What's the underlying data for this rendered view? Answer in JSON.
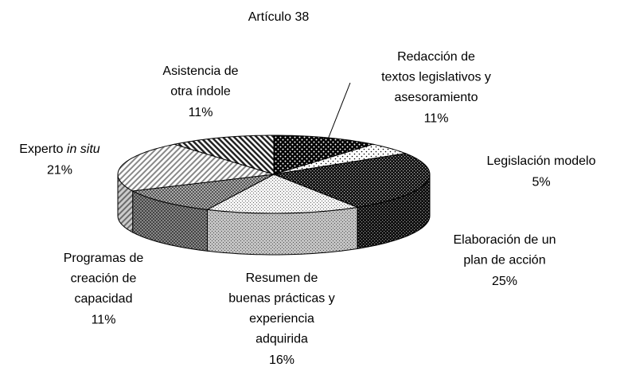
{
  "chart_data": {
    "type": "pie3d",
    "title": "Artículo 38",
    "categories": [
      "Redacción de textos legislativos y asesoramiento",
      "Legislación modelo",
      "Elaboración de un plan de acción",
      "Resumen de buenas prácticas y experiencia adquirida",
      "Programas de creación de capacidad",
      "Experto in situ",
      "Asistencia de otra índole"
    ],
    "values": [
      11,
      5,
      25,
      16,
      11,
      21,
      11
    ],
    "value_labels": [
      "11%",
      "5%",
      "25%",
      "16%",
      "11%",
      "21%",
      "11%"
    ]
  }
}
